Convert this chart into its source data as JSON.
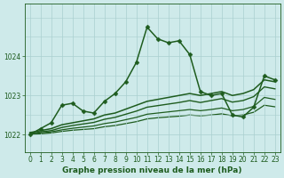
{
  "title": "Graphe pression niveau de la mer (hPa)",
  "bg_color": "#ceeaea",
  "grid_color": "#aacfcf",
  "line_color": "#1e5c1e",
  "ylim": [
    1021.55,
    1025.35
  ],
  "yticks": [
    1022,
    1023,
    1024
  ],
  "xlim": [
    -0.5,
    23.5
  ],
  "xticks": [
    0,
    1,
    2,
    3,
    4,
    5,
    6,
    7,
    8,
    9,
    10,
    11,
    12,
    13,
    14,
    15,
    16,
    17,
    18,
    19,
    20,
    21,
    22,
    23
  ],
  "series": [
    {
      "x": [
        0,
        1,
        2,
        3,
        4,
        5,
        6,
        7,
        8,
        9,
        10,
        11,
        12,
        13,
        14,
        15,
        16,
        17,
        18,
        19,
        20,
        21,
        22,
        23
      ],
      "y": [
        1022.0,
        1022.15,
        1022.3,
        1022.75,
        1022.8,
        1022.6,
        1022.55,
        1022.85,
        1023.05,
        1023.35,
        1023.85,
        1024.75,
        1024.45,
        1024.35,
        1024.4,
        1024.05,
        1023.1,
        1023.0,
        1023.05,
        1022.5,
        1022.45,
        1022.7,
        1023.5,
        1023.4
      ],
      "marker": "D",
      "markersize": 2.5,
      "linewidth": 1.1,
      "zorder": 5
    },
    {
      "x": [
        0,
        1,
        2,
        3,
        4,
        5,
        6,
        7,
        8,
        9,
        10,
        11,
        12,
        13,
        14,
        15,
        16,
        17,
        18,
        19,
        20,
        21,
        22,
        23
      ],
      "y": [
        1022.05,
        1022.1,
        1022.15,
        1022.25,
        1022.3,
        1022.35,
        1022.4,
        1022.5,
        1022.55,
        1022.65,
        1022.75,
        1022.85,
        1022.9,
        1022.95,
        1023.0,
        1023.05,
        1023.0,
        1023.05,
        1023.1,
        1023.0,
        1023.05,
        1023.15,
        1023.4,
        1023.35
      ],
      "marker": null,
      "markersize": 0,
      "linewidth": 1.1,
      "zorder": 4
    },
    {
      "x": [
        0,
        1,
        2,
        3,
        4,
        5,
        6,
        7,
        8,
        9,
        10,
        11,
        12,
        13,
        14,
        15,
        16,
        17,
        18,
        19,
        20,
        21,
        22,
        23
      ],
      "y": [
        1022.02,
        1022.07,
        1022.1,
        1022.18,
        1022.23,
        1022.27,
        1022.31,
        1022.39,
        1022.44,
        1022.52,
        1022.6,
        1022.7,
        1022.74,
        1022.78,
        1022.82,
        1022.87,
        1022.82,
        1022.87,
        1022.92,
        1022.83,
        1022.87,
        1022.97,
        1023.22,
        1023.17
      ],
      "marker": null,
      "markersize": 0,
      "linewidth": 1.0,
      "zorder": 3
    },
    {
      "x": [
        0,
        1,
        2,
        3,
        4,
        5,
        6,
        7,
        8,
        9,
        10,
        11,
        12,
        13,
        14,
        15,
        16,
        17,
        18,
        19,
        20,
        21,
        22,
        23
      ],
      "y": [
        1022.01,
        1022.04,
        1022.07,
        1022.12,
        1022.16,
        1022.19,
        1022.22,
        1022.28,
        1022.32,
        1022.38,
        1022.44,
        1022.52,
        1022.55,
        1022.58,
        1022.61,
        1022.64,
        1022.61,
        1022.64,
        1022.68,
        1022.61,
        1022.64,
        1022.72,
        1022.95,
        1022.9
      ],
      "marker": null,
      "markersize": 0,
      "linewidth": 0.9,
      "zorder": 2
    },
    {
      "x": [
        0,
        1,
        2,
        3,
        4,
        5,
        6,
        7,
        8,
        9,
        10,
        11,
        12,
        13,
        14,
        15,
        16,
        17,
        18,
        19,
        20,
        21,
        22,
        23
      ],
      "y": [
        1022.0,
        1022.02,
        1022.04,
        1022.08,
        1022.11,
        1022.13,
        1022.15,
        1022.2,
        1022.23,
        1022.28,
        1022.33,
        1022.4,
        1022.43,
        1022.45,
        1022.47,
        1022.5,
        1022.48,
        1022.5,
        1022.53,
        1022.48,
        1022.5,
        1022.57,
        1022.75,
        1022.71
      ],
      "marker": null,
      "markersize": 0,
      "linewidth": 0.9,
      "zorder": 1
    }
  ],
  "tick_fontsize": 5.5,
  "title_fontsize": 6.5
}
